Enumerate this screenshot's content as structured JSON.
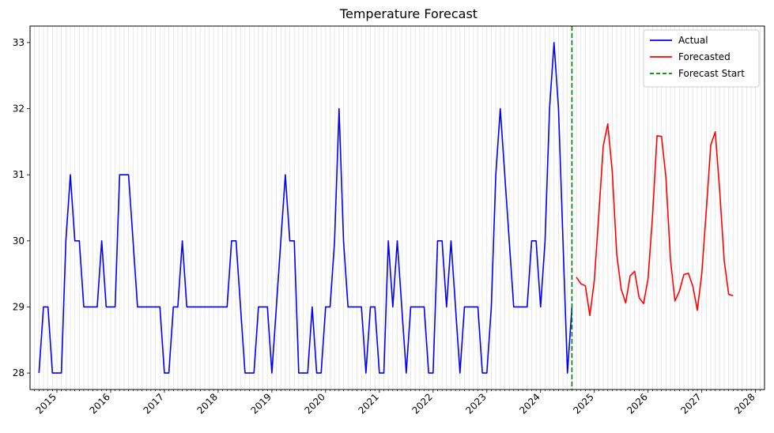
{
  "chart_data": {
    "type": "line",
    "title": "Temperature Forecast",
    "xlabel": "",
    "ylabel": "",
    "x_ticks": [
      "2015",
      "2016",
      "2017",
      "2018",
      "2019",
      "2020",
      "2021",
      "2022",
      "2023",
      "2024",
      "2025",
      "2026",
      "2027",
      "2028"
    ],
    "y_ticks": [
      "28",
      "29",
      "30",
      "31",
      "32",
      "33"
    ],
    "xlim": [
      "2014-07",
      "2028-03"
    ],
    "ylim": [
      27.75,
      33.25
    ],
    "x_grid": "monthly",
    "legend_position": "top-right",
    "series": [
      {
        "name": "Actual",
        "color": "#0000ff",
        "x": [
          "2014-09",
          "2014-10",
          "2014-11",
          "2014-12",
          "2015-01",
          "2015-02",
          "2015-03",
          "2015-04",
          "2015-05",
          "2015-06",
          "2015-07",
          "2015-08",
          "2015-09",
          "2015-10",
          "2015-11",
          "2015-12",
          "2016-01",
          "2016-02",
          "2016-03",
          "2016-04",
          "2016-05",
          "2016-06",
          "2016-07",
          "2016-08",
          "2016-09",
          "2016-10",
          "2016-11",
          "2016-12",
          "2017-01",
          "2017-02",
          "2017-03",
          "2017-04",
          "2017-05",
          "2017-06",
          "2017-07",
          "2017-08",
          "2017-09",
          "2017-10",
          "2017-11",
          "2017-12",
          "2018-01",
          "2018-02",
          "2018-03",
          "2018-04",
          "2018-05",
          "2018-06",
          "2018-07",
          "2018-08",
          "2018-09",
          "2018-10",
          "2018-11",
          "2018-12",
          "2019-01",
          "2019-02",
          "2019-03",
          "2019-04",
          "2019-05",
          "2019-06",
          "2019-07",
          "2019-08",
          "2019-09",
          "2019-10",
          "2019-11",
          "2019-12",
          "2020-01",
          "2020-02",
          "2020-03",
          "2020-04",
          "2020-05",
          "2020-06",
          "2020-07",
          "2020-08",
          "2020-09",
          "2020-10",
          "2020-11",
          "2020-12",
          "2021-01",
          "2021-02",
          "2021-03",
          "2021-04",
          "2021-05",
          "2021-06",
          "2021-07",
          "2021-08",
          "2021-09",
          "2021-10",
          "2021-11",
          "2021-12",
          "2022-01",
          "2022-02",
          "2022-03",
          "2022-04",
          "2022-05",
          "2022-06",
          "2022-07",
          "2022-08",
          "2022-09",
          "2022-10",
          "2022-11",
          "2022-12",
          "2023-01",
          "2023-02",
          "2023-03",
          "2023-04",
          "2023-05",
          "2023-06",
          "2023-07",
          "2023-08",
          "2023-09",
          "2023-10",
          "2023-11",
          "2023-12",
          "2024-01",
          "2024-02",
          "2024-03",
          "2024-04",
          "2024-05",
          "2024-06",
          "2024-07",
          "2024-08"
        ],
        "y": [
          28,
          29,
          29,
          28,
          28,
          28,
          30,
          31,
          30,
          30,
          29,
          29,
          29,
          29,
          30,
          29,
          29,
          29,
          31,
          31,
          31,
          30,
          29,
          29,
          29,
          29,
          29,
          29,
          28,
          28,
          29,
          29,
          30,
          29,
          29,
          29,
          29,
          29,
          29,
          29,
          29,
          29,
          29,
          30,
          30,
          29,
          28,
          28,
          28,
          29,
          29,
          29,
          28,
          29,
          30,
          31,
          30,
          30,
          28,
          28,
          28,
          29,
          28,
          28,
          29,
          29,
          30,
          32,
          30,
          29,
          29,
          29,
          29,
          28,
          29,
          29,
          28,
          28,
          30,
          29,
          30,
          29,
          28,
          29,
          29,
          29,
          29,
          28,
          28,
          30,
          30,
          29,
          30,
          29,
          28,
          29,
          29,
          29,
          29,
          28,
          28,
          29,
          31,
          32,
          31,
          30,
          29,
          29,
          29,
          29,
          30,
          30,
          29,
          30,
          32,
          33,
          32,
          30,
          28,
          29
        ]
      },
      {
        "name": "Forecasted",
        "color": "#ff0000",
        "x": [
          "2024-09",
          "2024-10",
          "2024-11",
          "2024-12",
          "2025-01",
          "2025-02",
          "2025-03",
          "2025-04",
          "2025-05",
          "2025-06",
          "2025-07",
          "2025-08",
          "2025-09",
          "2025-10",
          "2025-11",
          "2025-12",
          "2026-01",
          "2026-02",
          "2026-03",
          "2026-04",
          "2026-05",
          "2026-06",
          "2026-07",
          "2026-08",
          "2026-09",
          "2026-10",
          "2026-11",
          "2026-12",
          "2027-01",
          "2027-02",
          "2027-03",
          "2027-04",
          "2027-05",
          "2027-06",
          "2027-07",
          "2027-08"
        ],
        "y": [
          29.45,
          29.35,
          29.32,
          28.87,
          29.4,
          30.4,
          31.44,
          31.77,
          31.05,
          29.8,
          29.27,
          29.06,
          29.47,
          29.54,
          29.14,
          29.05,
          29.43,
          30.38,
          31.59,
          31.58,
          30.95,
          29.72,
          29.09,
          29.24,
          29.49,
          29.51,
          29.31,
          28.95,
          29.51,
          30.46,
          31.45,
          31.65,
          30.75,
          29.7,
          29.19,
          29.17
        ]
      },
      {
        "name": "Forecast Start",
        "color": "#008000",
        "style": "dashed",
        "type": "vline",
        "x": "2024-08"
      }
    ]
  }
}
